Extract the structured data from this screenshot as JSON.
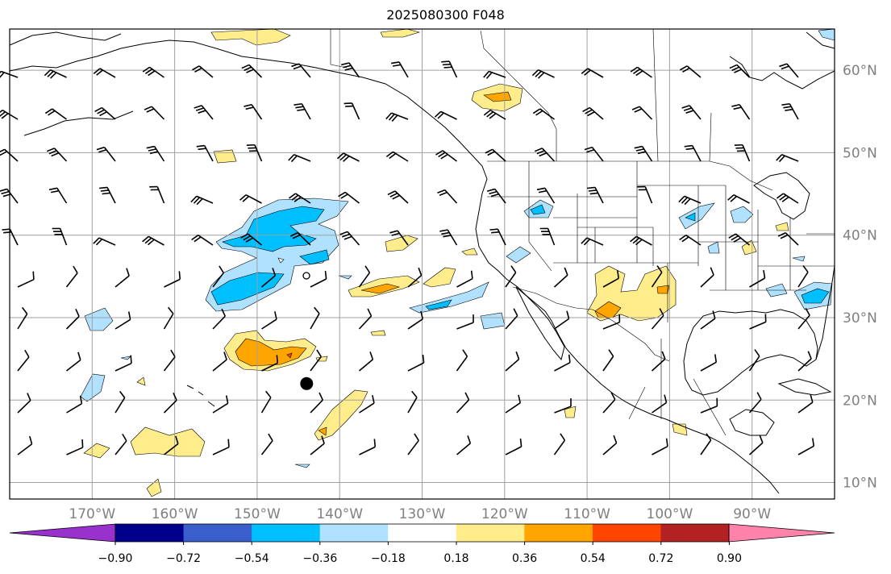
{
  "title": "2025080300 F048",
  "map": {
    "lon_range": [
      -180,
      -80
    ],
    "lat_range": [
      8,
      65
    ],
    "gridlines": true,
    "lon_ticks": [
      {
        "value": -170,
        "label": "170°W"
      },
      {
        "value": -160,
        "label": "160°W"
      },
      {
        "value": -150,
        "label": "150°W"
      },
      {
        "value": -140,
        "label": "140°W"
      },
      {
        "value": -130,
        "label": "130°W"
      },
      {
        "value": -120,
        "label": "120°W"
      },
      {
        "value": -110,
        "label": "110°W"
      },
      {
        "value": -100,
        "label": "100°W"
      },
      {
        "value": -90,
        "label": "90°W"
      }
    ],
    "lat_ticks": [
      {
        "value": 10,
        "label": "10°N"
      },
      {
        "value": 20,
        "label": "20°N"
      },
      {
        "value": 30,
        "label": "30°N"
      },
      {
        "value": 40,
        "label": "40°N"
      },
      {
        "value": 50,
        "label": "50°N"
      },
      {
        "value": 60,
        "label": "60°N"
      }
    ],
    "marker": {
      "lon": -144,
      "lat": 22,
      "icon": "black-dot-marker-icon"
    }
  },
  "colorbar": {
    "orientation": "horizontal",
    "extend": "both",
    "boundaries": [
      -0.9,
      -0.72,
      -0.54,
      -0.36,
      -0.18,
      0.18,
      0.36,
      0.54,
      0.72,
      0.9
    ],
    "tick_labels": [
      "−0.90",
      "−0.72",
      "−0.54",
      "−0.36",
      "−0.18",
      "0.18",
      "0.36",
      "0.54",
      "0.72",
      "0.90"
    ],
    "colors": [
      "#9932cc",
      "#00008b",
      "#3a5fcd",
      "#00bfff",
      "#b0e2ff",
      "#ffffff",
      "#ffec8b",
      "#ffa500",
      "#ff4500",
      "#b22222",
      "#ff82ab"
    ]
  }
}
